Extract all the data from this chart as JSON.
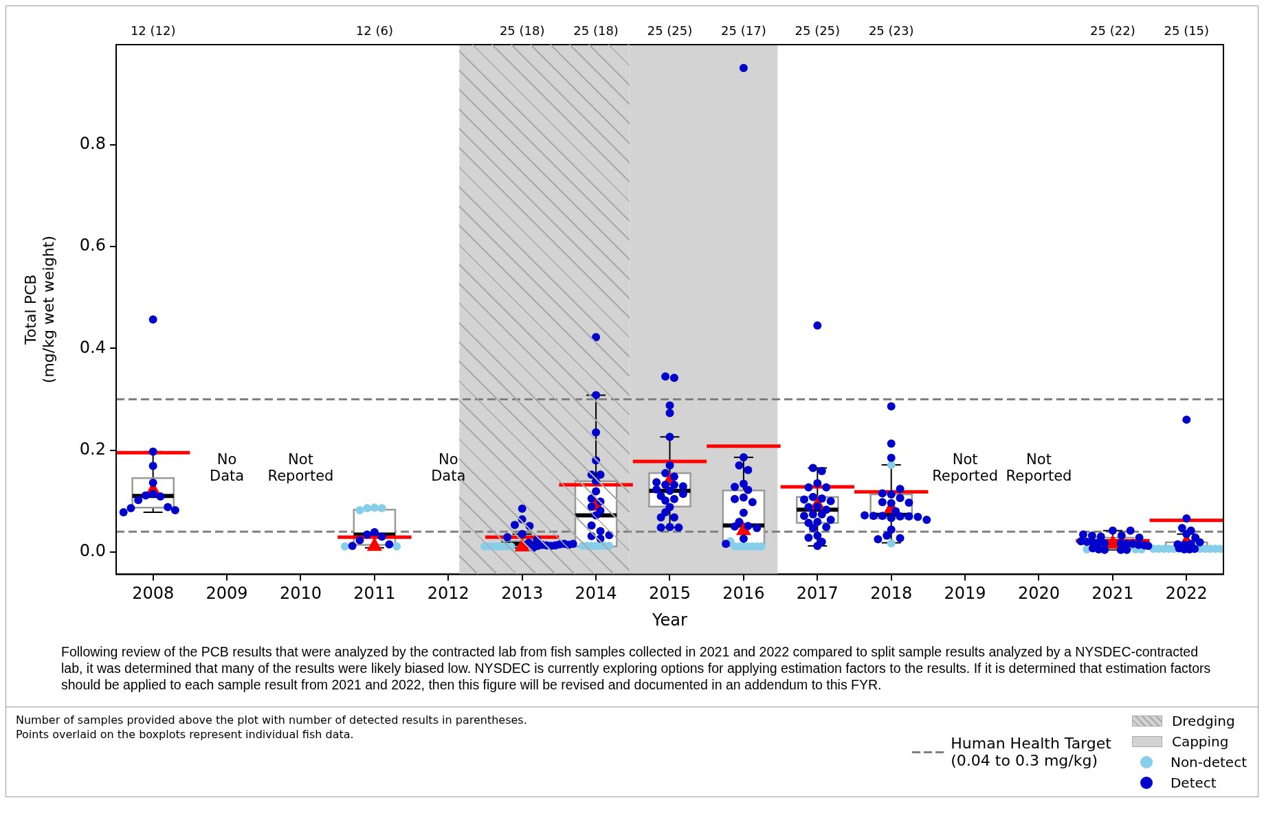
{
  "chart_data": {
    "type": "box",
    "xlabel": "Year",
    "ylabel": "Total PCB\n(mg/kg wet weight)",
    "x": [
      2008,
      2011,
      2013,
      2014,
      2015,
      2016,
      2017,
      2018,
      2021,
      2022
    ],
    "xlim": [
      2007.5,
      2022.5
    ],
    "xticks": [
      2008,
      2009,
      2010,
      2011,
      2012,
      2013,
      2014,
      2015,
      2016,
      2017,
      2018,
      2019,
      2020,
      2021,
      2022
    ],
    "ylim": [
      -0.044,
      0.997
    ],
    "yticks": [
      {
        "value": 0,
        "label": "0.0"
      },
      {
        "value": 0.2,
        "label": "0.2"
      },
      {
        "value": 0.4,
        "label": "0.4"
      },
      {
        "value": 0.6,
        "label": "0.6"
      },
      {
        "value": 0.8,
        "label": "0.8"
      }
    ],
    "boxes": [
      {
        "low": 0.078,
        "q1": 0.087,
        "median": 0.11,
        "q3": 0.145,
        "high": 0.197,
        "mean": 0.123
      },
      {
        "low": 0.008,
        "q1": 0.014,
        "median": 0.034,
        "q3": 0.083,
        "high": 0.086,
        "mean": 0.013
      },
      {
        "low": 0.008,
        "q1": 0.011,
        "median": 0.016,
        "q3": 0.021,
        "high": 0.035,
        "mean": 0.012
      },
      {
        "low": 0.011,
        "q1": 0.011,
        "median": 0.072,
        "q3": 0.139,
        "high": 0.308,
        "mean": 0.092
      },
      {
        "low": 0.048,
        "q1": 0.089,
        "median": 0.12,
        "q3": 0.155,
        "high": 0.226,
        "mean": 0.141
      },
      {
        "low": 0.011,
        "q1": 0.012,
        "median": 0.052,
        "q3": 0.121,
        "high": 0.186,
        "mean": 0.044
      },
      {
        "low": 0.012,
        "q1": 0.057,
        "median": 0.083,
        "q3": 0.108,
        "high": 0.165,
        "mean": 0.094
      },
      {
        "low": 0.018,
        "q1": 0.066,
        "median": 0.073,
        "q3": 0.113,
        "high": 0.171,
        "mean": 0.087
      },
      {
        "low": 0.004,
        "q1": 0.006,
        "median": 0.017,
        "q3": 0.028,
        "high": 0.042,
        "mean": 0.018
      },
      {
        "low": 0.002,
        "q1": 0.002,
        "median": 0.005,
        "q3": 0.019,
        "high": 0.035,
        "mean": 0.021
      }
    ],
    "value_labels": [
      "12 (12)",
      "12 (6)",
      "25 (18)",
      "25 (18)",
      "25 (25)",
      "25 (17)",
      "25 (25)",
      "25 (23)",
      "25 (22)",
      "25 (15)"
    ],
    "series": [
      {
        "type": "line",
        "marker": "none",
        "line_style": "solid",
        "color": "#ff0000",
        "x": [
          2007.5,
          2008.5
        ],
        "values": [
          0.195,
          0.195
        ]
      },
      {
        "type": "line",
        "marker": "none",
        "line_style": "solid",
        "color": "#ff0000",
        "x": [
          2010.5,
          2011.5
        ],
        "values": [
          0.029,
          0.029
        ]
      },
      {
        "type": "line",
        "marker": "none",
        "line_style": "solid",
        "color": "#ff0000",
        "x": [
          2012.5,
          2013.5
        ],
        "values": [
          0.029,
          0.029
        ]
      },
      {
        "type": "line",
        "marker": "none",
        "line_style": "solid",
        "color": "#ff0000",
        "x": [
          2013.5,
          2014.5
        ],
        "values": [
          0.132,
          0.132
        ]
      },
      {
        "type": "line",
        "marker": "none",
        "line_style": "solid",
        "color": "#ff0000",
        "x": [
          2014.5,
          2015.5
        ],
        "values": [
          0.178,
          0.178
        ]
      },
      {
        "type": "line",
        "marker": "none",
        "line_style": "solid",
        "color": "#ff0000",
        "x": [
          2015.5,
          2016.5
        ],
        "values": [
          0.208,
          0.208
        ]
      },
      {
        "type": "line",
        "marker": "none",
        "line_style": "solid",
        "color": "#ff0000",
        "x": [
          2016.5,
          2017.5
        ],
        "values": [
          0.128,
          0.128
        ]
      },
      {
        "type": "line",
        "marker": "none",
        "line_style": "solid",
        "color": "#ff0000",
        "x": [
          2017.5,
          2018.5
        ],
        "values": [
          0.118,
          0.118
        ]
      },
      {
        "type": "line",
        "marker": "none",
        "line_style": "solid",
        "color": "#ff0000",
        "x": [
          2020.5,
          2021.5
        ],
        "values": [
          0.022,
          0.022
        ]
      },
      {
        "type": "line",
        "marker": "none",
        "line_style": "solid",
        "color": "#ff0000",
        "x": [
          2021.5,
          2022.5
        ],
        "values": [
          0.062,
          0.062
        ]
      },
      {
        "type": "scatter",
        "marker": "circle",
        "name": "Non-detect",
        "color": "#87ceeb",
        "x": [
          2011,
          2010.9,
          2011.1,
          2010.8,
          2011.3,
          2010.6,
          2012.49,
          2012.55,
          2012.61,
          2012.67,
          2012.73,
          2012.79,
          2012.85,
          2013.82,
          2013.88,
          2013.94,
          2014,
          2014.06,
          2014.12,
          2014.18,
          2015.82,
          2015.88,
          2015.94,
          2016,
          2016.06,
          2016.12,
          2016.18,
          2016.24,
          2018,
          2018,
          2020.65,
          2021.31,
          2021.39,
          2021.55,
          2021.62,
          2021.69,
          2021.76,
          2021.83,
          2022.18,
          2022.25,
          2022.32,
          2022.39,
          2022.46
        ],
        "values": [
          0.087,
          0.086,
          0.086,
          0.082,
          0.011,
          0.011,
          0.011,
          0.011,
          0.011,
          0.011,
          0.011,
          0.011,
          0.011,
          0.012,
          0.012,
          0.012,
          0.012,
          0.012,
          0.012,
          0.012,
          0.021,
          0.011,
          0.011,
          0.011,
          0.011,
          0.011,
          0.011,
          0.011,
          0.171,
          0.017,
          0.005,
          0.005,
          0.005,
          0.006,
          0.006,
          0.006,
          0.006,
          0.006,
          0.006,
          0.006,
          0.006,
          0.006,
          0.006
        ]
      },
      {
        "type": "scatter",
        "marker": "circle",
        "name": "Detect",
        "color": "#0000cd",
        "x": [
          2008,
          2008,
          2008,
          2008,
          2008,
          2007.9,
          2008.1,
          2007.8,
          2008.2,
          2007.7,
          2008.3,
          2007.6,
          2011,
          2010.9,
          2011.1,
          2010.8,
          2011.2,
          2010.7,
          2013,
          2013,
          2012.9,
          2013.1,
          2013,
          2012.8,
          2013.2,
          2013.09,
          2013.15,
          2013.21,
          2013.27,
          2013.33,
          2013.39,
          2013.45,
          2013.51,
          2013.57,
          2013.63,
          2013.69,
          2014,
          2014,
          2014,
          2014,
          2013.94,
          2014.06,
          2014,
          2014,
          2013.94,
          2014.06,
          2013.94,
          2014.06,
          2014,
          2013.94,
          2014.06,
          2013.94,
          2014.06,
          2014.18,
          2014.94,
          2015.06,
          2015,
          2015,
          2015,
          2015,
          2014.94,
          2015.06,
          2014.82,
          2014.94,
          2015.06,
          2015.18,
          2014.82,
          2015,
          2015.18,
          2014.88,
          2015.06,
          2014.94,
          2015,
          2014.94,
          2014.88,
          2015.06,
          2015,
          2014.88,
          2015.12,
          2016,
          2016,
          2015.94,
          2016.06,
          2016,
          2015.88,
          2016.06,
          2016,
          2015.88,
          2016.12,
          2016,
          2015.94,
          2016.06,
          2015.88,
          2016.18,
          2016,
          2015.76,
          2017,
          2016.94,
          2017.06,
          2017,
          2016.88,
          2017.12,
          2016.94,
          2017.06,
          2016.82,
          2017.18,
          2017,
          2016.88,
          2017.12,
          2016.94,
          2017.06,
          2016.82,
          2017.18,
          2017,
          2016.88,
          2017.12,
          2016.94,
          2017,
          2016.88,
          2017.06,
          2017,
          2018,
          2018,
          2018,
          2018.12,
          2017.88,
          2018,
          2018.12,
          2017.88,
          2018.24,
          2018,
          2018.06,
          2017.64,
          2017.76,
          2017.88,
          2018.12,
          2018.24,
          2018.36,
          2018,
          2018.48,
          2018,
          2017.94,
          2018.12,
          2017.82,
          2020.6,
          2020.72,
          2020.84,
          2021.12,
          2021,
          2021.24,
          2021.36,
          2020.57,
          2020.65,
          2020.73,
          2020.81,
          2020.89,
          2021.11,
          2021.19,
          2021.27,
          2021.35,
          2021.43,
          2020.73,
          2020.81,
          2020.89,
          2021.11,
          2021.19,
          2022,
          2022,
          2021.94,
          2022.06,
          2022,
          2022.12,
          2022.18,
          2022.06,
          2021.88,
          2021.97,
          2021.48,
          2021.9,
          2021.97,
          2022.04,
          2022.11
        ],
        "values": [
          0.457,
          0.197,
          0.169,
          0.136,
          0.114,
          0.111,
          0.109,
          0.102,
          0.088,
          0.086,
          0.082,
          0.078,
          0.039,
          0.034,
          0.03,
          0.023,
          0.015,
          0.012,
          0.085,
          0.064,
          0.053,
          0.051,
          0.035,
          0.029,
          0.024,
          0.018,
          0.008,
          0.012,
          0.014,
          0.013,
          0.012,
          0.013,
          0.015,
          0.016,
          0.014,
          0.016,
          0.422,
          0.308,
          0.235,
          0.18,
          0.152,
          0.152,
          0.139,
          0.119,
          0.105,
          0.099,
          0.089,
          0.081,
          0.072,
          0.052,
          0.041,
          0.031,
          0.026,
          0.033,
          0.345,
          0.342,
          0.288,
          0.273,
          0.226,
          0.17,
          0.155,
          0.148,
          0.137,
          0.132,
          0.132,
          0.129,
          0.123,
          0.12,
          0.114,
          0.11,
          0.104,
          0.101,
          0.088,
          0.078,
          0.068,
          0.068,
          0.049,
          0.048,
          0.048,
          0.951,
          0.186,
          0.17,
          0.161,
          0.134,
          0.128,
          0.122,
          0.107,
          0.104,
          0.098,
          0.077,
          0.059,
          0.051,
          0.05,
          0.047,
          0.026,
          0.016,
          0.445,
          0.165,
          0.159,
          0.135,
          0.127,
          0.127,
          0.108,
          0.105,
          0.103,
          0.1,
          0.089,
          0.088,
          0.083,
          0.074,
          0.074,
          0.071,
          0.063,
          0.059,
          0.057,
          0.049,
          0.047,
          0.032,
          0.028,
          0.02,
          0.012,
          0.286,
          0.213,
          0.185,
          0.124,
          0.115,
          0.113,
          0.106,
          0.098,
          0.097,
          0.096,
          0.08,
          0.072,
          0.071,
          0.071,
          0.07,
          0.07,
          0.069,
          0.067,
          0.063,
          0.044,
          0.032,
          0.027,
          0.025,
          0.034,
          0.032,
          0.03,
          0.032,
          0.042,
          0.042,
          0.028,
          0.021,
          0.02,
          0.019,
          0.018,
          0.017,
          0.017,
          0.016,
          0.016,
          0.014,
          0.013,
          0.007,
          0.005,
          0.004,
          0.004,
          0.004,
          0.26,
          0.066,
          0.047,
          0.042,
          0.035,
          0.028,
          0.019,
          0.016,
          0.015,
          0.014,
          0.012,
          0.007,
          0.005,
          0.005,
          0.006
        ]
      }
    ],
    "bands": [
      {
        "axis": "x",
        "from": 2012.15,
        "to": 2014.46,
        "label": "Dredging",
        "color": "#d3d3d3"
      },
      {
        "axis": "x",
        "from": 2014.46,
        "to": 2016.46,
        "label": "Capping",
        "color": "#d3d3d3"
      }
    ],
    "ref_lines": [
      {
        "axis": "y",
        "value": 0.04,
        "label": "Human Health Target\n(0.04 to 0.3 mg/kg)",
        "color": "#808080",
        "line_style": "dashed"
      },
      {
        "axis": "y",
        "value": 0.3,
        "color": "#808080",
        "line_style": "dashed"
      }
    ],
    "legend": "bottom right",
    "annotations": [
      "No\nData",
      "Not\nReported",
      "No\nData",
      "Not\nReported",
      "Not\nReported",
      "Following review of the PCB results that were analyzed by the contracted lab from fish samples collected in 2021 and 2022 compared to split sample results analyzed by a NYSDEC-contracted lab, it was determined that many of the results were likely biased low. NYSDEC is currently exploring options for applying estimation factors to the results. If it is determined that estimation factors should be applied to each sample result from 2021 and 2022, then this figure will be revised and documented in an addendum to this FYR.",
      "Number of samples provided above the plot with number of detected results in parentheses.",
      "Points overlaid on the boxplots represent individual fish data."
    ]
  }
}
